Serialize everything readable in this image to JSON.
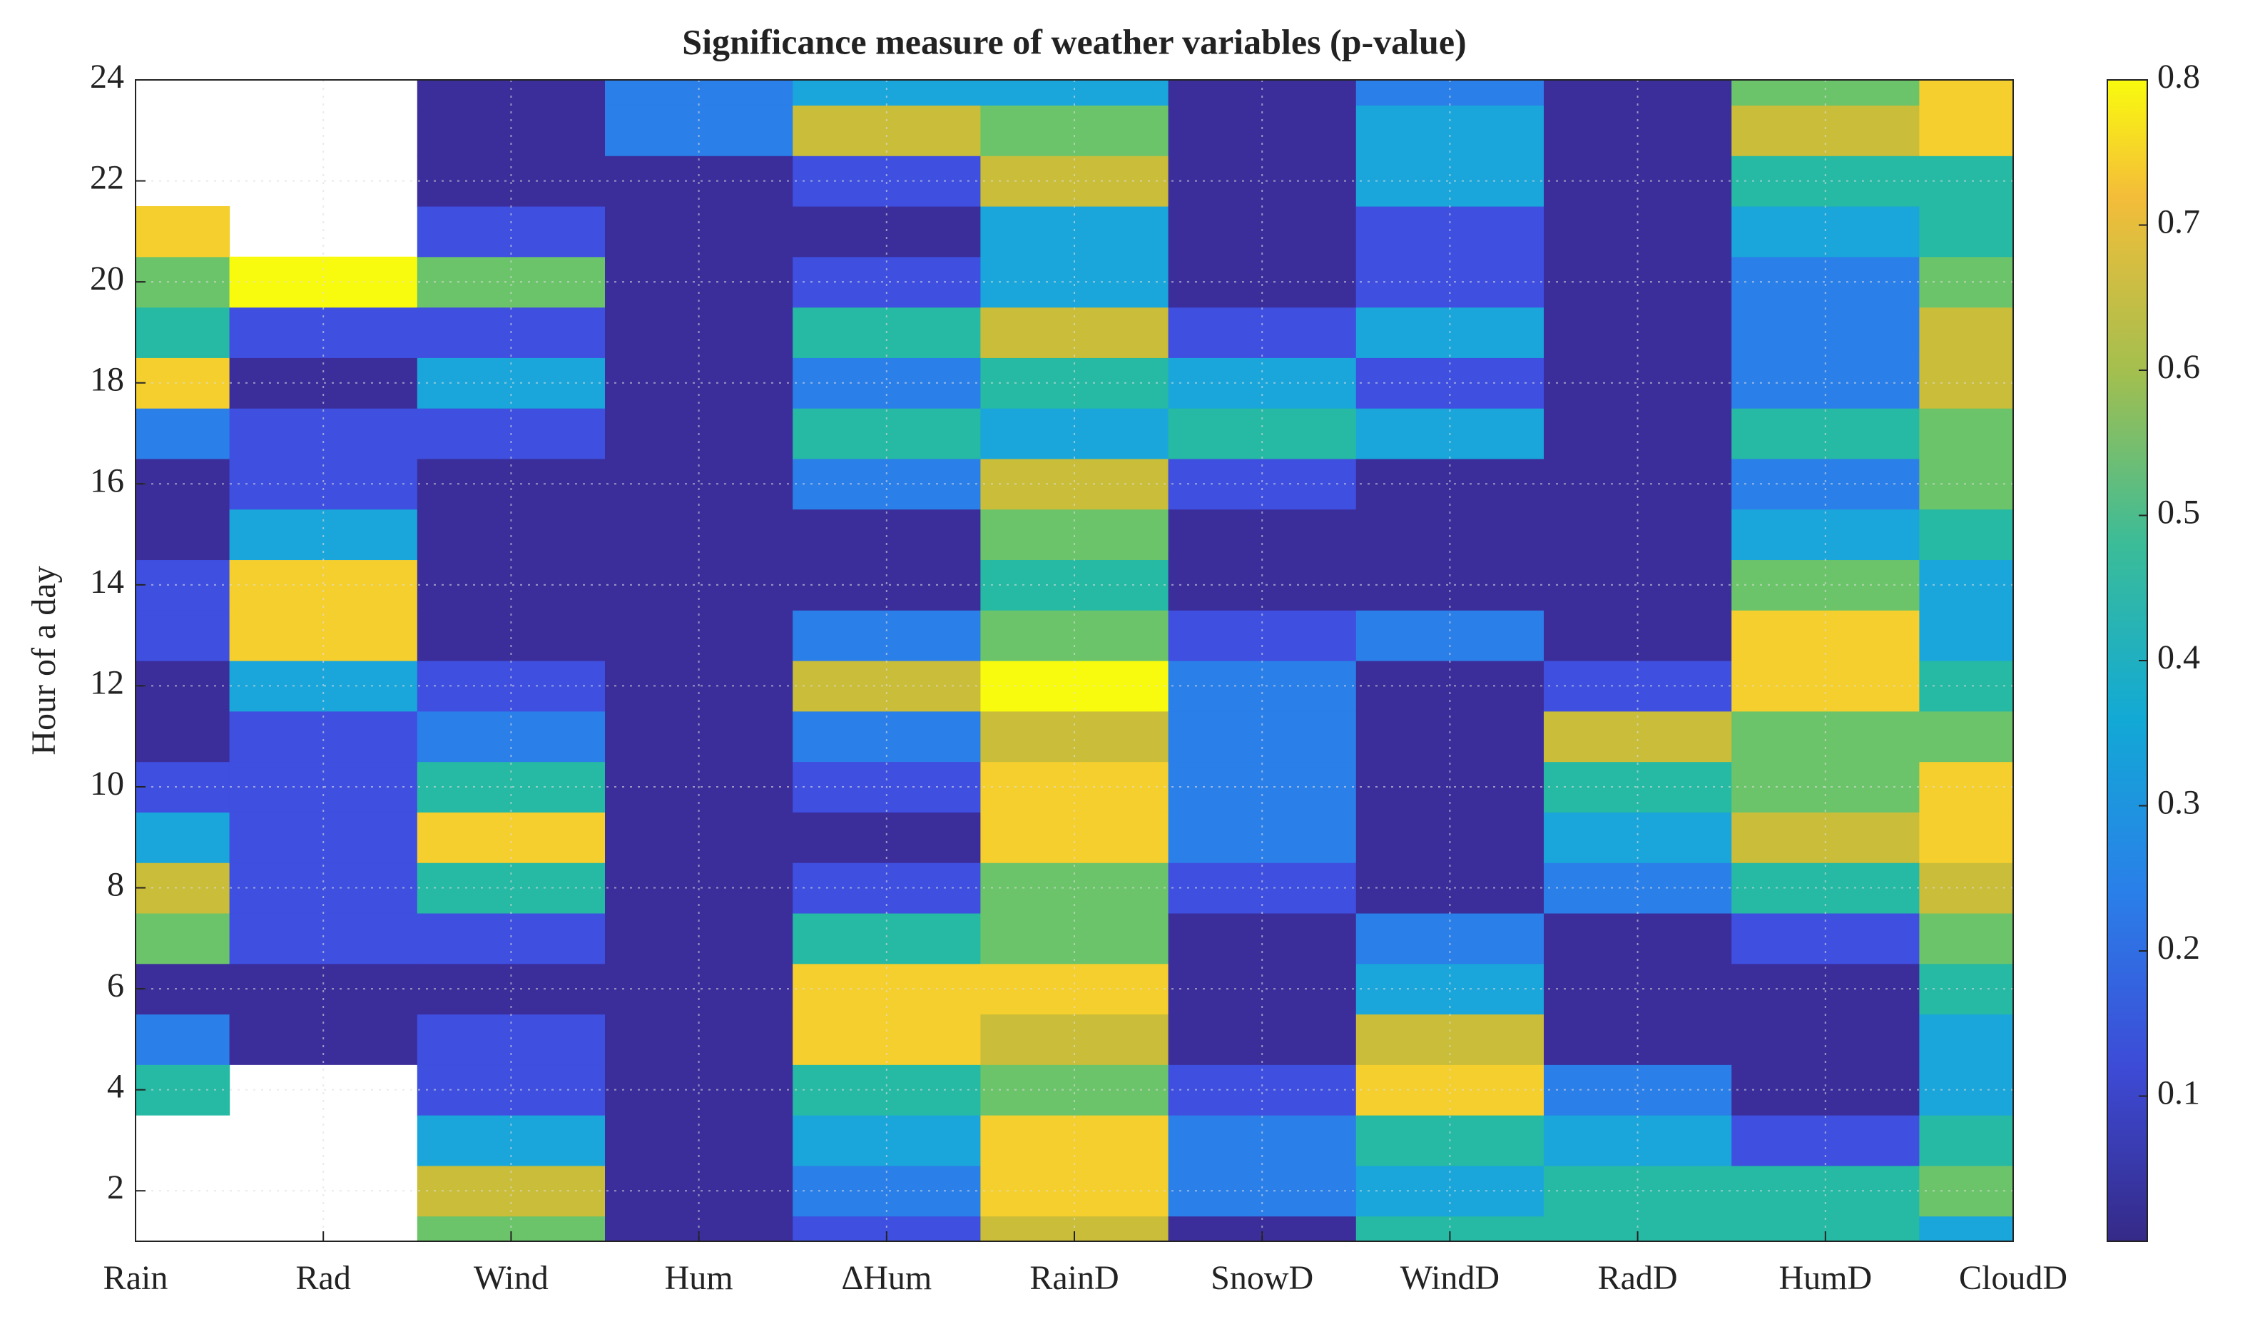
{
  "chart_data": {
    "type": "contour",
    "title": "Significance measure of weather variables (p-value)",
    "y_label": "Hour of a day",
    "categories": [
      "Rain",
      "Rad",
      "Wind",
      "Hum",
      "ΔHum",
      "RainD",
      "SnowD",
      "WindD",
      "RadD",
      "HumD",
      "CloudD"
    ],
    "y": [
      1,
      2,
      3,
      4,
      5,
      6,
      7,
      8,
      9,
      10,
      11,
      12,
      13,
      14,
      15,
      16,
      17,
      18,
      19,
      20,
      21,
      22,
      23,
      24
    ],
    "z": [
      [
        null,
        null,
        null,
        0.4,
        0.2,
        0.05,
        0.5,
        0.6,
        0.3,
        0.1,
        0.05,
        0.05,
        0.1,
        0.1,
        0.05,
        0.05,
        0.2,
        0.7,
        0.4,
        0.5,
        0.7,
        null,
        null,
        null
      ],
      [
        null,
        null,
        null,
        null,
        0.05,
        0.05,
        0.1,
        0.1,
        0.1,
        0.1,
        0.1,
        0.3,
        0.7,
        0.75,
        0.3,
        0.1,
        0.1,
        0.05,
        0.1,
        0.8,
        null,
        null,
        null,
        null
      ],
      [
        0.55,
        0.6,
        0.3,
        0.15,
        0.1,
        0.05,
        0.15,
        0.4,
        0.75,
        0.4,
        0.2,
        0.1,
        0.05,
        0.05,
        0.05,
        0.05,
        0.1,
        0.35,
        0.1,
        0.5,
        0.1,
        0.05,
        0.05,
        0.05
      ],
      [
        0.03,
        0.03,
        0.03,
        0.03,
        0.03,
        0.03,
        0.03,
        0.03,
        0.03,
        0.03,
        0.03,
        0.03,
        0.03,
        0.03,
        0.03,
        0.03,
        0.03,
        0.03,
        0.03,
        0.03,
        0.03,
        0.05,
        0.2,
        0.2
      ],
      [
        0.1,
        0.2,
        0.3,
        0.4,
        0.75,
        0.75,
        0.4,
        0.1,
        0.05,
        0.1,
        0.2,
        0.6,
        0.2,
        0.05,
        0.05,
        0.2,
        0.4,
        0.2,
        0.4,
        0.1,
        0.05,
        0.1,
        0.6,
        0.3
      ],
      [
        0.6,
        0.7,
        0.75,
        0.5,
        0.6,
        0.7,
        0.5,
        0.5,
        0.7,
        0.75,
        0.6,
        0.82,
        0.5,
        0.4,
        0.5,
        0.65,
        0.35,
        0.4,
        0.6,
        0.3,
        0.3,
        0.6,
        0.5,
        0.3
      ],
      [
        0.05,
        0.2,
        0.2,
        0.1,
        0.05,
        0.05,
        0.05,
        0.1,
        0.2,
        0.2,
        0.2,
        0.2,
        0.1,
        0.05,
        0.05,
        0.1,
        0.4,
        0.3,
        0.1,
        0.05,
        0.05,
        0.05,
        0.05,
        0.05
      ],
      [
        0.4,
        0.3,
        0.4,
        0.75,
        0.6,
        0.3,
        0.2,
        0.05,
        0.05,
        0.05,
        0.05,
        0.05,
        0.2,
        0.05,
        0.05,
        0.05,
        0.35,
        0.1,
        0.3,
        0.1,
        0.15,
        0.3,
        0.3,
        0.2
      ],
      [
        0.4,
        0.4,
        0.35,
        0.2,
        0.05,
        0.05,
        0.05,
        0.2,
        0.3,
        0.4,
        0.6,
        0.1,
        0.05,
        0.05,
        0.05,
        0.05,
        0.05,
        0.05,
        0.05,
        0.05,
        0.05,
        0.05,
        0.05,
        0.05
      ],
      [
        0.4,
        0.4,
        0.1,
        0.05,
        0.05,
        0.05,
        0.1,
        0.4,
        0.6,
        0.5,
        0.5,
        0.7,
        0.7,
        0.5,
        0.3,
        0.2,
        0.4,
        0.2,
        0.2,
        0.2,
        0.3,
        0.4,
        0.65,
        0.5
      ],
      [
        0.3,
        0.55,
        0.4,
        0.3,
        0.3,
        0.4,
        0.5,
        0.6,
        0.7,
        0.7,
        0.5,
        0.4,
        0.3,
        0.3,
        0.4,
        0.5,
        0.55,
        0.6,
        0.6,
        0.5,
        0.4,
        0.4,
        0.7,
        0.7
      ]
    ],
    "ylim": [
      1,
      24
    ],
    "yticks": [
      2,
      4,
      6,
      8,
      10,
      12,
      14,
      16,
      18,
      20,
      22,
      24
    ],
    "levels": [
      0.1,
      0.2,
      0.3,
      0.4,
      0.5,
      0.6,
      0.7,
      0.8
    ],
    "colors": [
      "#3b2e9b",
      "#3f4fdf",
      "#2b7fe9",
      "#1aa6da",
      "#26b9a4",
      "#6cc46a",
      "#c9bd3a",
      "#f5cf2e",
      "#f9fb0e"
    ],
    "clim": [
      0,
      0.8
    ],
    "cticks": [
      0.1,
      0.2,
      0.3,
      0.4,
      0.5,
      0.6,
      0.7,
      0.8
    ],
    "grid": true
  }
}
